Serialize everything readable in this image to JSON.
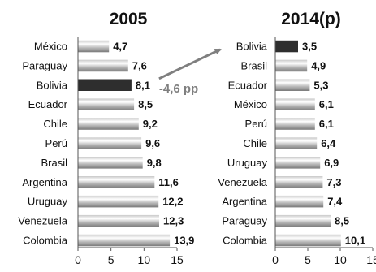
{
  "chart_data": [
    {
      "type": "bar",
      "orientation": "horizontal",
      "title": "2005",
      "categories": [
        "México",
        "Paraguay",
        "Bolivia",
        "Ecuador",
        "Chile",
        "Perú",
        "Brasil",
        "Argentina",
        "Uruguay",
        "Venezuela",
        "Colombia"
      ],
      "values": [
        4.7,
        7.6,
        8.1,
        8.5,
        9.2,
        9.6,
        9.8,
        11.6,
        12.2,
        12.3,
        13.9
      ],
      "value_labels": [
        "4,7",
        "7,6",
        "8,1",
        "8,5",
        "9,2",
        "9,6",
        "9,8",
        "11,6",
        "12,2",
        "12,3",
        "13,9"
      ],
      "highlight": "Bolivia",
      "xlim": [
        0,
        15
      ],
      "xticks": [
        0,
        5,
        10,
        15
      ],
      "grid": false
    },
    {
      "type": "bar",
      "orientation": "horizontal",
      "title": "2014(p)",
      "categories": [
        "Bolivia",
        "Brasil",
        "Ecuador",
        "México",
        "Perú",
        "Chile",
        "Uruguay",
        "Venezuela",
        "Argentina",
        "Paraguay",
        "Colombia"
      ],
      "values": [
        3.5,
        4.9,
        5.3,
        6.1,
        6.1,
        6.4,
        6.9,
        7.3,
        7.4,
        8.5,
        10.1
      ],
      "value_labels": [
        "3,5",
        "4,9",
        "5,3",
        "6,1",
        "6,1",
        "6,4",
        "6,9",
        "7,3",
        "7,4",
        "8,5",
        "10,1"
      ],
      "highlight": "Bolivia",
      "xlim": [
        0,
        15
      ],
      "xticks": [
        0,
        5,
        10,
        15
      ],
      "grid": false
    }
  ],
  "annotation": {
    "text": "-4,6 pp"
  },
  "colors": {
    "highlight_bar": "#2e2e2e",
    "bar_light": "#ffffff",
    "bar_dark": "#8a8a8a",
    "axis": "#555555",
    "arrow": "#7f7f7f",
    "annotation_text": "#7f7f7f",
    "text": "#111111"
  }
}
